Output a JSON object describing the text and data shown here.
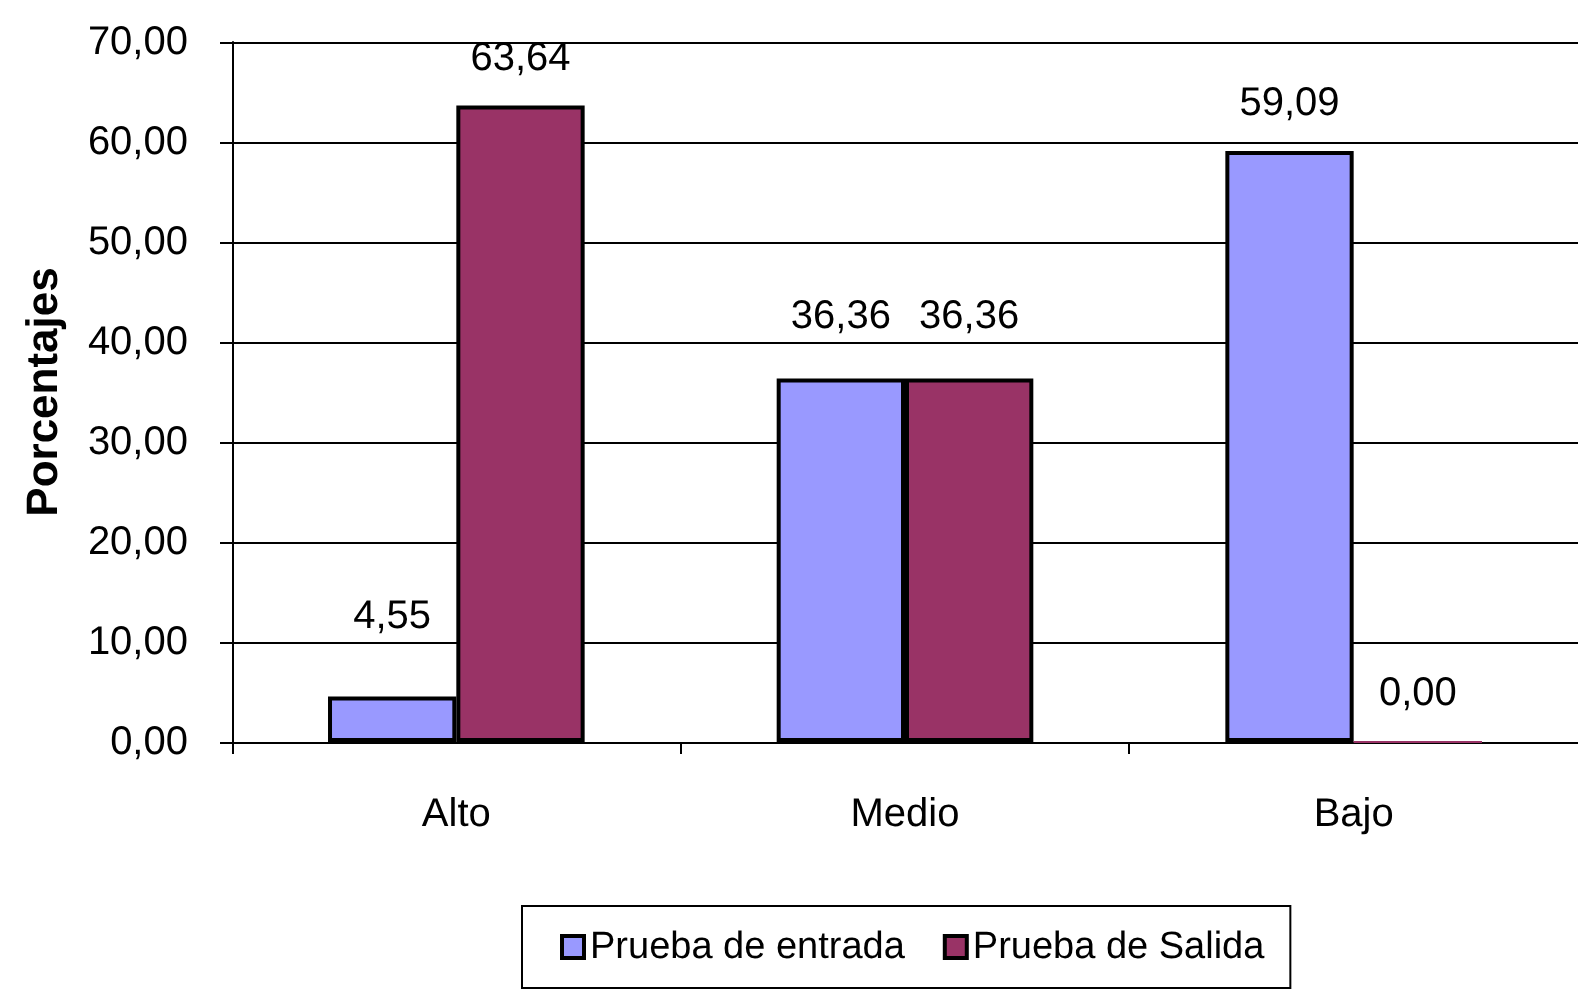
{
  "chart_data": {
    "type": "bar",
    "ylabel": "Porcentajes",
    "categories": [
      "Alto",
      "Medio",
      "Bajo"
    ],
    "series": [
      {
        "name": "Prueba de entrada",
        "color": "#9999ff",
        "values": [
          4.55,
          36.36,
          59.09
        ],
        "value_labels": [
          "4,55",
          "36,36",
          "59,09"
        ]
      },
      {
        "name": "Prueba de Salida",
        "color": "#993366",
        "values": [
          63.64,
          36.36,
          0
        ],
        "value_labels": [
          "63,64",
          "36,36",
          "0,00"
        ]
      }
    ],
    "ylim": [
      0,
      70
    ],
    "yticks": [
      {
        "value": 0,
        "label": "0,00"
      },
      {
        "value": 10,
        "label": "10,00"
      },
      {
        "value": 20,
        "label": "20,00"
      },
      {
        "value": 30,
        "label": "30,00"
      },
      {
        "value": 40,
        "label": "40,00"
      },
      {
        "value": 50,
        "label": "50,00"
      },
      {
        "value": 60,
        "label": "60,00"
      },
      {
        "value": 70,
        "label": "70,00"
      }
    ],
    "grid": "y",
    "legend": "bottom"
  }
}
